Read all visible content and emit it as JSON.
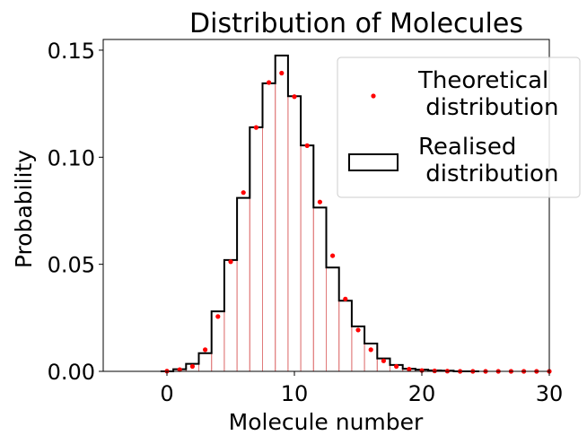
{
  "chart_data": {
    "type": "bar",
    "title": "Distribution of Molecules",
    "xlabel": "Molecule number",
    "ylabel": "Probability",
    "xlim": [
      -5,
      30
    ],
    "ylim": [
      0,
      0.155
    ],
    "xticks": [
      0,
      10,
      20,
      30
    ],
    "yticks": [
      0.0,
      0.05,
      0.1,
      0.15
    ],
    "ytick_labels": [
      "0.00",
      "0.05",
      "0.10",
      "0.15"
    ],
    "legend_position": "top-right",
    "grid": false,
    "colors": {
      "theoretical": "#ff0000",
      "realised": "#000000",
      "stems": "#e07a7a"
    },
    "series": [
      {
        "name": "Theoretical\n distribution",
        "kind": "scatter",
        "x": [
          0,
          1,
          2,
          3,
          4,
          5,
          6,
          7,
          8,
          9,
          10,
          11,
          12,
          13,
          14,
          15,
          16,
          17,
          18,
          19,
          20,
          21,
          22,
          23,
          24,
          25,
          26,
          27,
          28,
          29,
          30
        ],
        "values": [
          0.0001,
          0.0008,
          0.0023,
          0.0101,
          0.0256,
          0.0512,
          0.0835,
          0.1139,
          0.1349,
          0.1393,
          0.1283,
          0.1054,
          0.0791,
          0.054,
          0.0338,
          0.0193,
          0.0101,
          0.0049,
          0.0023,
          0.001,
          0.0004,
          0.0002,
          0.0001,
          0.0,
          0.0,
          0.0,
          0.0,
          0.0,
          0.0,
          0.0,
          0.0
        ]
      },
      {
        "name": "Realised\n distribution",
        "kind": "step",
        "x": [
          0,
          1,
          2,
          3,
          4,
          5,
          6,
          7,
          8,
          9,
          10,
          11,
          12,
          13,
          14,
          15,
          16,
          17,
          18,
          19,
          20,
          21,
          22,
          23,
          24
        ],
        "values": [
          0.0,
          0.001,
          0.0035,
          0.0085,
          0.028,
          0.052,
          0.081,
          0.114,
          0.1345,
          0.1475,
          0.1285,
          0.1055,
          0.0765,
          0.0485,
          0.033,
          0.021,
          0.013,
          0.006,
          0.003,
          0.0012,
          0.0008,
          0.0004,
          0.0003,
          0.0,
          0.0
        ]
      }
    ]
  }
}
